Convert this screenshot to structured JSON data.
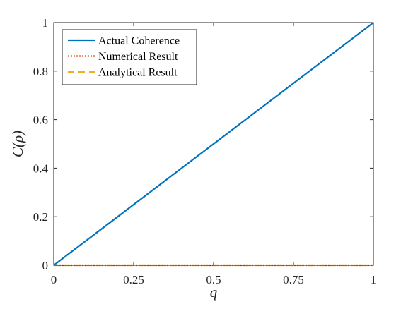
{
  "chart_data": {
    "type": "line",
    "xlabel": "q",
    "ylabel": "C(ρ)",
    "xlim": [
      0,
      1
    ],
    "ylim": [
      0,
      1
    ],
    "x_ticks": [
      0,
      0.25,
      0.5,
      0.75,
      1
    ],
    "x_tick_labels": [
      "0",
      "0.25",
      "0.5",
      "0.75",
      "1"
    ],
    "y_ticks": [
      0,
      0.2,
      0.4,
      0.6,
      0.8,
      1
    ],
    "y_tick_labels": [
      "0",
      "0.2",
      "0.4",
      "0.6",
      "0.8",
      "1"
    ],
    "grid": false,
    "legend_position": "top-left",
    "series": [
      {
        "name": "Actual Coherence",
        "style": "solid",
        "color": "#0072BD",
        "x": [
          0,
          1
        ],
        "y": [
          0,
          1
        ]
      },
      {
        "name": "Numerical Result",
        "style": "dotted",
        "color": "#D95319",
        "x": [
          0,
          1
        ],
        "y": [
          0,
          0
        ]
      },
      {
        "name": "Analytical Result",
        "style": "dashed",
        "color": "#EDB120",
        "x": [
          0,
          1
        ],
        "y": [
          0,
          0
        ]
      }
    ]
  }
}
